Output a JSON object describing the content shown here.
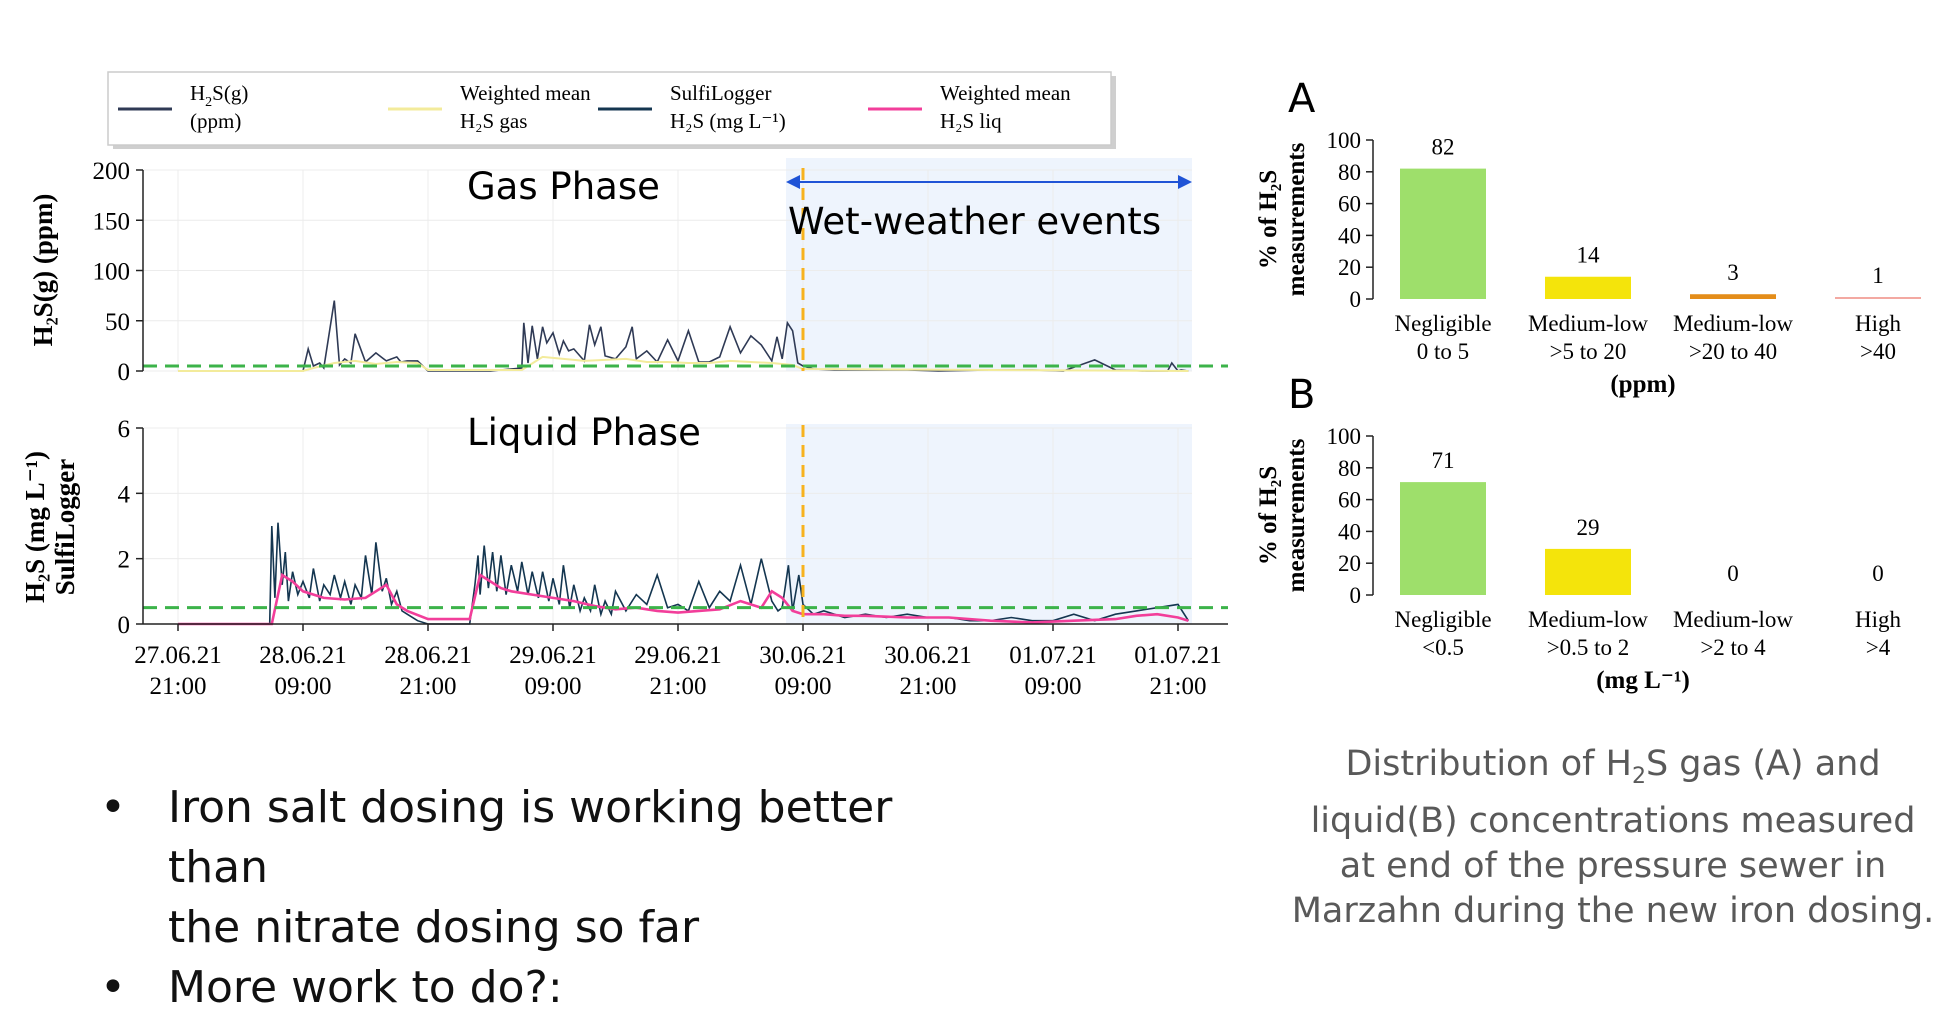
{
  "colors": {
    "h2s_gas": "#2f3a55",
    "gas_mean": "#f3eb9b",
    "sulfilogger": "#143650",
    "liq_mean": "#f23e9a",
    "threshold": "#3cb34a",
    "wet_start": "#f7b21e",
    "wet_band": "#eef4fd",
    "arrow": "#1f53d6",
    "negligible": "#9edf6b",
    "medium_low_1": "#f4e40b",
    "medium_low_2": "#e48d1a",
    "high": "#f3a9a2"
  },
  "legend": [
    {
      "label_1": "H",
      "sub": "2",
      "label_2": "S(g)",
      "label_3": "(ppm)",
      "color_key": "h2s_gas"
    },
    {
      "label_1": "Weighted mean",
      "label_3": "H₂S gas",
      "color_key": "gas_mean"
    },
    {
      "label_1": "SulfiLogger",
      "label_3": "H₂S (mg L⁻¹)",
      "color_key": "sulfilogger"
    },
    {
      "label_1": "Weighted mean",
      "label_3": "H₂S liq",
      "color_key": "liq_mean"
    }
  ],
  "annotations": {
    "gas_phase": "Gas Phase",
    "liquid_phase": "Liquid Phase",
    "wet_weather": "Wet-weather events",
    "panel_a": "A",
    "panel_b": "B"
  },
  "chart_data": [
    {
      "id": "gas-timeseries",
      "type": "line",
      "ylabel": "H₂S(g) (ppm)",
      "ylim": [
        0,
        200
      ],
      "yticks": [
        "0",
        "50",
        "100",
        "150",
        "200"
      ],
      "threshold": 5,
      "x_start": "27.06.21 21:00",
      "x_end": "01.07.21 21:00",
      "wet_weather_start_hours": 60,
      "series": [
        {
          "name": "H₂S(g)",
          "x_hours": [
            0,
            6,
            9,
            12,
            12.5,
            13,
            13.6,
            14,
            15,
            15.5,
            16,
            16.6,
            17,
            18,
            19,
            20,
            20.5,
            21,
            21.4,
            22,
            23,
            24,
            30,
            33,
            33.2,
            33.6,
            34,
            34.5,
            35,
            35.4,
            36,
            36.6,
            37,
            37.5,
            38,
            39,
            39.5,
            40,
            40.6,
            41,
            42,
            43,
            43.6,
            44,
            45,
            46,
            47,
            48,
            49,
            50,
            51,
            52,
            53,
            54,
            55,
            56,
            57,
            57.5,
            58,
            58.5,
            59,
            59.5,
            60,
            61,
            63,
            66,
            70,
            73,
            78,
            82,
            85,
            88,
            90,
            93,
            95,
            95.4,
            96,
            96.3,
            97
          ],
          "values": [
            0,
            0,
            0,
            0,
            22,
            5,
            8,
            3,
            70,
            6,
            12,
            8,
            37,
            9,
            18,
            10,
            12,
            14,
            9,
            10,
            10,
            0,
            0,
            3,
            48,
            8,
            45,
            12,
            44,
            28,
            38,
            17,
            30,
            20,
            22,
            10,
            46,
            26,
            44,
            15,
            12,
            24,
            44,
            12,
            20,
            9,
            31,
            10,
            40,
            9,
            9,
            14,
            44,
            18,
            35,
            26,
            10,
            34,
            12,
            48,
            40,
            8,
            5,
            2,
            1,
            1,
            1,
            0,
            1,
            1,
            0,
            11,
            1,
            0,
            0,
            8,
            0,
            1,
            0
          ]
        },
        {
          "name": "Weighted mean H₂S gas",
          "x_hours": [
            0,
            12,
            13,
            15,
            17,
            19,
            21,
            23,
            24,
            33,
            35,
            37,
            39,
            41,
            43,
            45,
            47,
            49,
            51,
            53,
            55,
            57,
            59,
            60,
            97
          ],
          "values": [
            0,
            0,
            3,
            8,
            10,
            7,
            9,
            8,
            1,
            1,
            14,
            12,
            10,
            11,
            12,
            9,
            9,
            8,
            8,
            10,
            9,
            8,
            6,
            2,
            0
          ]
        }
      ]
    },
    {
      "id": "liquid-timeseries",
      "type": "line",
      "ylabel": "H₂S (mg L⁻¹) SulfiLogger",
      "ylim": [
        0,
        6
      ],
      "yticks": [
        "0",
        "2",
        "4",
        "6"
      ],
      "threshold": 0.5,
      "x_start": "27.06.21 21:00",
      "x_end": "01.07.21 21:00",
      "x_tick_labels": [
        [
          "27.06.21",
          "21:00"
        ],
        [
          "28.06.21",
          "09:00"
        ],
        [
          "28.06.21",
          "21:00"
        ],
        [
          "29.06.21",
          "09:00"
        ],
        [
          "29.06.21",
          "21:00"
        ],
        [
          "30.06.21",
          "09:00"
        ],
        [
          "30.06.21",
          "21:00"
        ],
        [
          "01.07.21",
          "09:00"
        ],
        [
          "01.07.21",
          "21:00"
        ]
      ],
      "series": [
        {
          "name": "SulfiLogger H₂S (mg L⁻¹)",
          "x_hours": [
            0,
            8.8,
            9,
            9.3,
            9.6,
            10,
            10.3,
            10.6,
            11,
            11.5,
            12,
            12.6,
            13,
            13.6,
            14,
            14.6,
            15,
            15.6,
            16,
            16.6,
            17,
            17.6,
            18,
            18.6,
            19,
            19.6,
            20,
            20.5,
            21,
            21.5,
            22,
            23,
            24,
            28,
            28.5,
            28.8,
            29,
            29.4,
            29.8,
            30.2,
            30.6,
            31,
            31.5,
            32,
            32.6,
            33,
            33.6,
            34,
            34.6,
            35,
            35.6,
            36,
            36.6,
            37,
            37.6,
            38,
            38.6,
            39,
            39.6,
            40,
            40.6,
            41,
            41.6,
            42,
            43,
            44,
            45,
            46,
            47,
            48,
            49,
            50,
            51,
            52,
            53,
            54,
            55,
            56,
            57,
            57.6,
            58,
            58.6,
            59,
            59.6,
            60,
            61,
            62,
            64,
            66,
            68,
            70,
            72,
            74,
            76,
            78,
            80,
            82,
            84,
            86,
            88,
            90,
            92,
            94,
            96,
            97
          ],
          "values": [
            0,
            0,
            3,
            0.8,
            3.1,
            1.2,
            2.2,
            0.7,
            1.6,
            0.9,
            1.3,
            0.8,
            1.7,
            0.7,
            1.2,
            0.9,
            1.5,
            0.8,
            1.3,
            0.6,
            1.2,
            0.8,
            2.1,
            0.9,
            2.5,
            1,
            1.4,
            0.6,
            1,
            0.4,
            0.3,
            0.1,
            0,
            0,
            1.2,
            2.1,
            0.9,
            2.4,
            1.1,
            2.2,
            1,
            2.1,
            0.9,
            1.8,
            1,
            1.9,
            0.9,
            1.6,
            0.8,
            1.6,
            0.7,
            1.4,
            0.6,
            1.8,
            0.5,
            1.2,
            0.4,
            0.8,
            0.4,
            1.2,
            0.3,
            0.7,
            0.3,
            1,
            0.4,
            0.9,
            0.6,
            1.5,
            0.5,
            0.6,
            0.4,
            1.3,
            0.5,
            1,
            0.7,
            1.8,
            0.6,
            2,
            0.7,
            0.4,
            0.5,
            1.8,
            0.4,
            1.5,
            0.6,
            0.3,
            0.4,
            0.2,
            0.3,
            0.2,
            0.3,
            0.2,
            0.2,
            0.1,
            0.1,
            0.2,
            0.1,
            0.1,
            0.3,
            0.1,
            0.3,
            0.4,
            0.5,
            0.6,
            0.1
          ]
        },
        {
          "name": "Weighted mean H₂S liq",
          "x_hours": [
            0,
            9,
            10,
            11,
            12,
            14,
            16,
            18,
            20,
            21,
            22,
            24,
            28,
            29,
            30,
            31,
            32,
            34,
            36,
            38,
            40,
            42,
            44,
            46,
            48,
            50,
            52,
            54,
            56,
            57,
            58,
            59,
            60,
            62,
            64,
            66,
            70,
            74,
            78,
            82,
            86,
            90,
            92,
            94,
            96,
            97
          ],
          "values": [
            0,
            0,
            1.5,
            1.3,
            1,
            0.8,
            0.75,
            0.8,
            1.2,
            0.6,
            0.4,
            0.15,
            0.15,
            1.5,
            1.3,
            1.1,
            1,
            0.9,
            0.8,
            0.7,
            0.55,
            0.45,
            0.5,
            0.4,
            0.35,
            0.4,
            0.45,
            0.7,
            0.5,
            1,
            0.8,
            0.4,
            0.3,
            0.3,
            0.25,
            0.25,
            0.2,
            0.2,
            0.1,
            0.05,
            0.1,
            0.15,
            0.25,
            0.3,
            0.2,
            0.1
          ]
        }
      ]
    },
    {
      "id": "gas-distribution",
      "type": "bar",
      "panel": "A",
      "ylabel_line1": "% of H₂S",
      "ylabel_line2": "measurements",
      "xlabel": "(ppm)",
      "ylim": [
        0,
        100
      ],
      "yticks": [
        "0",
        "20",
        "40",
        "60",
        "80",
        "100"
      ],
      "categories": [
        [
          "Negligible",
          "0 to 5"
        ],
        [
          "Medium-low",
          ">5 to 20"
        ],
        [
          "Medium-low",
          ">20 to 40"
        ],
        [
          "High",
          ">40"
        ]
      ],
      "values": [
        82,
        14,
        3,
        1
      ],
      "value_labels": [
        "82",
        "14",
        "3",
        "1"
      ],
      "bar_color_keys": [
        "negligible",
        "medium_low_1",
        "medium_low_2",
        "high"
      ]
    },
    {
      "id": "liquid-distribution",
      "type": "bar",
      "panel": "B",
      "ylabel_line1": "% of H₂S",
      "ylabel_line2": "measurements",
      "xlabel": "(mg L⁻¹)",
      "ylim": [
        0,
        100
      ],
      "yticks": [
        "0",
        "20",
        "40",
        "60",
        "80",
        "100"
      ],
      "categories": [
        [
          "Negligible",
          "<0.5"
        ],
        [
          "Medium-low",
          ">0.5 to 2"
        ],
        [
          "Medium-low",
          ">2 to 4"
        ],
        [
          "High",
          ">4"
        ]
      ],
      "values": [
        71,
        29,
        0,
        0
      ],
      "value_labels": [
        "71",
        "29",
        "0",
        "0"
      ],
      "bar_color_keys": [
        "negligible",
        "medium_low_1",
        "medium_low_2",
        "high"
      ]
    }
  ],
  "bullets": [
    {
      "line_1": "Iron salt dosing is working better than",
      "line_2": "the nitrate dosing so far"
    },
    {
      "line_1": "More work to do?:",
      "line_2": ""
    }
  ],
  "bullet_symbol": "•",
  "caption": {
    "part_1": "Distribution of H",
    "sub": "2",
    "part_2": "S gas (A) and liquid(B) concentrations measured at end of the pressure sewer in Marzahn  during the new iron dosing."
  }
}
